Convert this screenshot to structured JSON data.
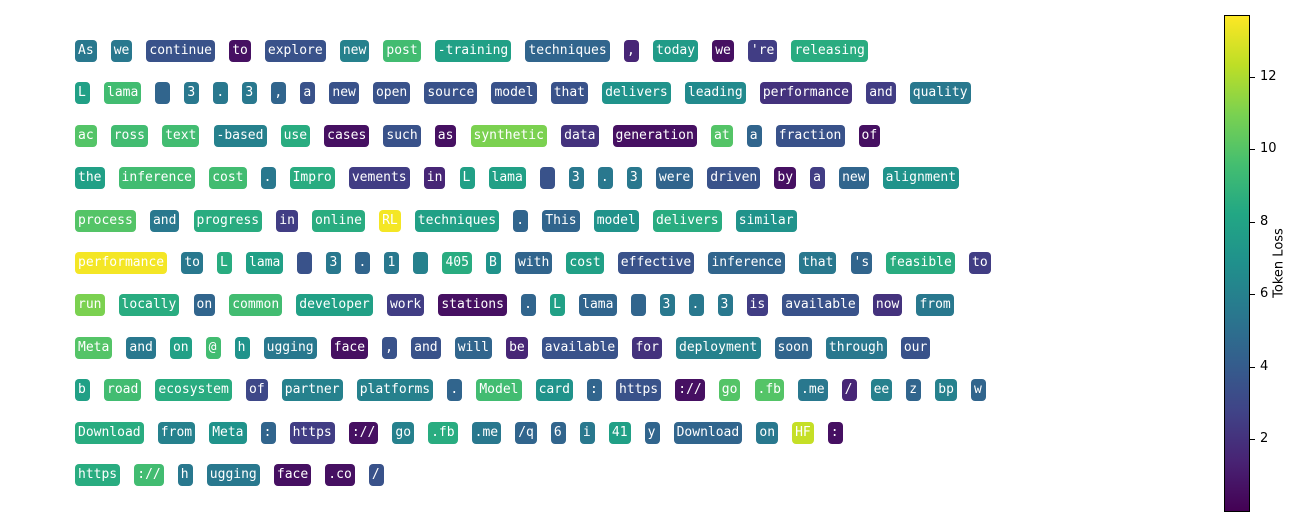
{
  "chart_data": {
    "type": "heatmap",
    "title": "",
    "colorbar": {
      "label": "Token Loss",
      "min": 0,
      "max": 13.7,
      "ticks": [
        "2",
        "4",
        "6",
        "8",
        "10",
        "12"
      ],
      "colormap": "viridis"
    },
    "lines": [
      [
        [
          "As",
          5.5
        ],
        [
          "we",
          5.5
        ],
        [
          "continue",
          3.5
        ],
        [
          "to",
          0.6
        ],
        [
          "explore",
          3.5
        ],
        [
          "new",
          6.0
        ],
        [
          "post",
          9.5
        ],
        [
          "-training",
          7.8
        ],
        [
          "techniques",
          4.5
        ],
        [
          ",",
          1.5
        ],
        [
          "today",
          7.5
        ],
        [
          "we",
          0.6
        ],
        [
          "'re",
          2.5
        ],
        [
          "releasing",
          8.5
        ]
      ],
      [
        [
          "L",
          7.8
        ],
        [
          "lama",
          9.5
        ],
        [
          "",
          4.5
        ],
        [
          "3",
          5.5
        ],
        [
          ".",
          5.5
        ],
        [
          "3",
          5.5
        ],
        [
          ",",
          4.5
        ],
        [
          "a",
          3.5
        ],
        [
          "new",
          3.5
        ],
        [
          "open",
          3.5
        ],
        [
          "source",
          3.5
        ],
        [
          "model",
          3.5
        ],
        [
          "that",
          3.5
        ],
        [
          "delivers",
          7.0
        ],
        [
          "leading",
          6.5
        ],
        [
          "performance",
          2.0
        ],
        [
          "and",
          2.5
        ],
        [
          "quality",
          5.5
        ]
      ],
      [
        [
          "ac",
          10.0
        ],
        [
          "ross",
          9.5
        ],
        [
          "text",
          9.5
        ],
        [
          "-based",
          6.0
        ],
        [
          "use",
          8.5
        ],
        [
          "cases",
          0.6
        ],
        [
          "such",
          3.5
        ],
        [
          "as",
          0.6
        ],
        [
          "synthetic",
          11.0
        ],
        [
          "data",
          2.0
        ],
        [
          "generation",
          0.6
        ],
        [
          "at",
          10.0
        ],
        [
          "a",
          4.5
        ],
        [
          "fraction",
          3.5
        ],
        [
          "of",
          0.6
        ]
      ],
      [
        [
          "the",
          7.8
        ],
        [
          "inference",
          9.5
        ],
        [
          "cost",
          9.5
        ],
        [
          ".",
          5.5
        ],
        [
          "Impro",
          8.5
        ],
        [
          "vements",
          2.5
        ],
        [
          "in",
          1.5
        ],
        [
          "L",
          7.8
        ],
        [
          "lama",
          7.8
        ],
        [
          "",
          3.5
        ],
        [
          "3",
          5.5
        ],
        [
          ".",
          5.5
        ],
        [
          "3",
          5.5
        ],
        [
          "were",
          4.5
        ],
        [
          "driven",
          3.5
        ],
        [
          "by",
          0.6
        ],
        [
          "a",
          2.5
        ],
        [
          "new",
          4.5
        ],
        [
          "alignment",
          7.0
        ]
      ],
      [
        [
          "process",
          10.0
        ],
        [
          "and",
          5.5
        ],
        [
          "progress",
          8.5
        ],
        [
          "in",
          2.5
        ],
        [
          "online",
          8.5
        ],
        [
          "RL",
          13.5
        ],
        [
          "techniques",
          7.8
        ],
        [
          ".",
          4.5
        ],
        [
          "This",
          4.5
        ],
        [
          "model",
          7.0
        ],
        [
          "delivers",
          8.5
        ],
        [
          "similar",
          7.0
        ]
      ],
      [
        [
          "performance",
          13.5
        ],
        [
          "to",
          5.5
        ],
        [
          "L",
          8.5
        ],
        [
          "lama",
          7.8
        ],
        [
          "",
          3.5
        ],
        [
          "3",
          5.5
        ],
        [
          ".",
          4.5
        ],
        [
          "1",
          5.5
        ],
        [
          "",
          6.0
        ],
        [
          "405",
          8.5
        ],
        [
          "B",
          7.0
        ],
        [
          "with",
          4.5
        ],
        [
          "cost",
          7.8
        ],
        [
          "effective",
          3.5
        ],
        [
          "inference",
          4.5
        ],
        [
          "that",
          5.5
        ],
        [
          "'s",
          4.5
        ],
        [
          "feasible",
          8.5
        ],
        [
          "to",
          2.5
        ]
      ],
      [
        [
          "run",
          11.0
        ],
        [
          "locally",
          8.5
        ],
        [
          "on",
          4.5
        ],
        [
          "common",
          9.5
        ],
        [
          "developer",
          7.8
        ],
        [
          "work",
          2.5
        ],
        [
          "stations",
          0.6
        ],
        [
          ".",
          4.5
        ],
        [
          "L",
          7.8
        ],
        [
          "lama",
          4.5
        ],
        [
          "",
          4.5
        ],
        [
          "3",
          5.5
        ],
        [
          ".",
          5.5
        ],
        [
          "3",
          5.5
        ],
        [
          "is",
          2.5
        ],
        [
          "available",
          3.5
        ],
        [
          "now",
          2.0
        ],
        [
          "from",
          5.5
        ]
      ],
      [
        [
          "Meta",
          10.0
        ],
        [
          "and",
          5.5
        ],
        [
          "on",
          7.8
        ],
        [
          "@",
          9.5
        ],
        [
          "h",
          7.0
        ],
        [
          "ugging",
          5.5
        ],
        [
          "face",
          0.6
        ],
        [
          ",",
          3.5
        ],
        [
          "and",
          3.5
        ],
        [
          "will",
          4.5
        ],
        [
          "be",
          1.5
        ],
        [
          "available",
          3.5
        ],
        [
          "for",
          2.0
        ],
        [
          "deployment",
          6.0
        ],
        [
          "soon",
          4.5
        ],
        [
          "through",
          5.5
        ],
        [
          "our",
          3.5
        ]
      ],
      [
        [
          "b",
          7.8
        ],
        [
          "road",
          9.5
        ],
        [
          "ecosystem",
          8.5
        ],
        [
          "of",
          3.0
        ],
        [
          "partner",
          6.0
        ],
        [
          "platforms",
          6.0
        ],
        [
          ".",
          4.5
        ],
        [
          "Model",
          9.5
        ],
        [
          "card",
          7.0
        ],
        [
          ":",
          4.5
        ],
        [
          "https",
          3.5
        ],
        [
          "://",
          0.6
        ],
        [
          "go",
          10.0
        ],
        [
          ".fb",
          10.0
        ],
        [
          ".me",
          5.5
        ],
        [
          "/",
          1.5
        ],
        [
          "ee",
          6.0
        ],
        [
          "z",
          4.5
        ],
        [
          "bp",
          6.0
        ],
        [
          "w",
          4.5
        ]
      ],
      [
        [
          "Download",
          8.5
        ],
        [
          "from",
          6.0
        ],
        [
          "Meta",
          7.0
        ],
        [
          ":",
          4.5
        ],
        [
          "https",
          2.5
        ],
        [
          "://",
          0.6
        ],
        [
          "go",
          6.0
        ],
        [
          ".fb",
          8.5
        ],
        [
          ".me",
          5.5
        ],
        [
          "/q",
          4.5
        ],
        [
          "6",
          4.5
        ],
        [
          "i",
          5.5
        ],
        [
          "41",
          7.8
        ],
        [
          "y",
          4.5
        ],
        [
          "Download",
          4.5
        ],
        [
          "on",
          5.5
        ],
        [
          "HF",
          12.5
        ],
        [
          ":",
          0.6
        ]
      ],
      [
        [
          "https",
          8.5
        ],
        [
          "://",
          9.5
        ],
        [
          "h",
          5.5
        ],
        [
          "ugging",
          5.5
        ],
        [
          "face",
          0.6
        ],
        [
          ".co",
          0.6
        ],
        [
          "/",
          3.5
        ]
      ]
    ]
  }
}
